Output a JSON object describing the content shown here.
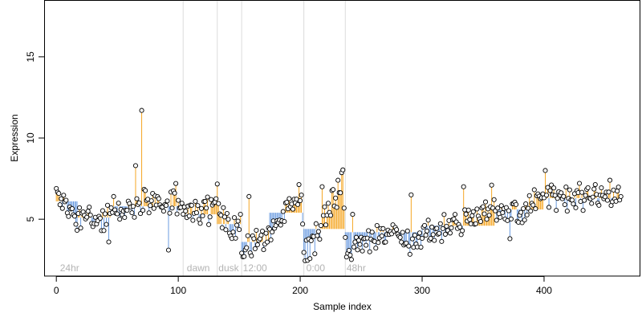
{
  "chart_data": {
    "type": "scatter",
    "title": "",
    "xlabel": "Sample index",
    "ylabel": "Expression",
    "xlim": [
      -10,
      479
    ],
    "ylim": [
      1.5,
      18.5
    ],
    "x_ticks": [
      0,
      100,
      200,
      300,
      400
    ],
    "y_ticks": [
      5,
      10,
      15
    ],
    "grid": false,
    "legend": "none",
    "colors": {
      "point_stroke": "#000000",
      "point_fill": "#ffffff",
      "segment_up": "#f5a623",
      "segment_down": "#6a9be0",
      "divider": "#dcdcdc",
      "phase_label": "#b3b3b3"
    },
    "phase_dividers": [
      104,
      132,
      152,
      203,
      237
    ],
    "phase_labels": [
      {
        "text": "24hr",
        "x": 3
      },
      {
        "text": "dawn",
        "x": 107
      },
      {
        "text": "dusk",
        "x": 133
      },
      {
        "text": "12:00",
        "x": 153
      },
      {
        "text": "0:00",
        "x": 205
      },
      {
        "text": "48hr",
        "x": 238
      }
    ],
    "baseline_blocks": [
      {
        "x_start": 0,
        "x_end": 18,
        "level": 6.1
      },
      {
        "x_start": 18,
        "x_end": 45,
        "level": 5.1
      },
      {
        "x_start": 45,
        "x_end": 104,
        "level": 5.8
      },
      {
        "x_start": 104,
        "x_end": 132,
        "level": 5.3
      },
      {
        "x_start": 132,
        "x_end": 152,
        "level": 4.7
      },
      {
        "x_start": 152,
        "x_end": 175,
        "level": 3.6
      },
      {
        "x_start": 175,
        "x_end": 203,
        "level": 5.4
      },
      {
        "x_start": 203,
        "x_end": 237,
        "level": 4.4
      },
      {
        "x_start": 237,
        "x_end": 300,
        "level": 4.2
      },
      {
        "x_start": 300,
        "x_end": 360,
        "level": 4.6
      },
      {
        "x_start": 360,
        "x_end": 400,
        "level": 5.6
      },
      {
        "x_start": 400,
        "x_end": 463,
        "level": 6.3
      }
    ],
    "anchors": [
      [
        1,
        6.5
      ],
      [
        6,
        6.1
      ],
      [
        12,
        5.4
      ],
      [
        18,
        5.0
      ],
      [
        30,
        4.9
      ],
      [
        40,
        5.0
      ],
      [
        50,
        5.6
      ],
      [
        60,
        5.5
      ],
      [
        72,
        6.0
      ],
      [
        85,
        6.1
      ],
      [
        98,
        5.9
      ],
      [
        104,
        5.6
      ],
      [
        110,
        5.4
      ],
      [
        125,
        5.6
      ],
      [
        132,
        6.6
      ],
      [
        135,
        4.9
      ],
      [
        145,
        4.6
      ],
      [
        151,
        4.8
      ],
      [
        152,
        3.0
      ],
      [
        160,
        3.4
      ],
      [
        175,
        4.2
      ],
      [
        190,
        5.6
      ],
      [
        201,
        6.7
      ],
      [
        203,
        3.1
      ],
      [
        212,
        3.6
      ],
      [
        225,
        5.9
      ],
      [
        235,
        7.2
      ],
      [
        238,
        3.1
      ],
      [
        250,
        3.6
      ],
      [
        270,
        4.0
      ],
      [
        290,
        3.8
      ],
      [
        310,
        4.2
      ],
      [
        330,
        4.7
      ],
      [
        350,
        5.6
      ],
      [
        370,
        5.2
      ],
      [
        380,
        5.5
      ],
      [
        400,
        6.3
      ],
      [
        420,
        6.2
      ],
      [
        440,
        6.5
      ],
      [
        463,
        6.6
      ]
    ],
    "outliers": [
      [
        70,
        11.7
      ],
      [
        65,
        8.3
      ],
      [
        401,
        8.0
      ],
      [
        98,
        7.2
      ],
      [
        47,
        6.4
      ],
      [
        158,
        6.4
      ],
      [
        218,
        7.0
      ],
      [
        231,
        7.4
      ],
      [
        334,
        7.0
      ],
      [
        357,
        7.1
      ],
      [
        372,
        3.8
      ],
      [
        92,
        3.1
      ],
      [
        43,
        3.6
      ],
      [
        243,
        5.3
      ],
      [
        291,
        6.5
      ]
    ]
  }
}
